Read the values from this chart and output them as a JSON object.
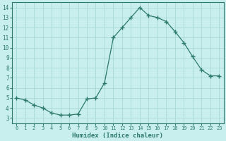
{
  "x": [
    0,
    1,
    2,
    3,
    4,
    5,
    6,
    7,
    8,
    9,
    10,
    11,
    12,
    13,
    14,
    15,
    16,
    17,
    18,
    19,
    20,
    21,
    22,
    23
  ],
  "y": [
    5.0,
    4.8,
    4.3,
    4.0,
    3.5,
    3.3,
    3.3,
    3.4,
    4.9,
    5.0,
    6.5,
    11.0,
    12.0,
    13.0,
    14.0,
    13.2,
    13.0,
    12.6,
    11.6,
    10.5,
    9.1,
    7.8,
    7.2,
    7.2
  ],
  "xlabel": "Humidex (Indice chaleur)",
  "xlim": [
    -0.5,
    23.5
  ],
  "ylim": [
    2.5,
    14.5
  ],
  "yticks": [
    3,
    4,
    5,
    6,
    7,
    8,
    9,
    10,
    11,
    12,
    13,
    14
  ],
  "xticks": [
    0,
    1,
    2,
    3,
    4,
    5,
    6,
    7,
    8,
    9,
    10,
    11,
    12,
    13,
    14,
    15,
    16,
    17,
    18,
    19,
    20,
    21,
    22,
    23
  ],
  "line_color": "#2d7a6a",
  "bg_color": "#c8eeee",
  "grid_color": "#aad8d8",
  "tick_color": "#2d7a6a",
  "label_color": "#2d7a6a"
}
